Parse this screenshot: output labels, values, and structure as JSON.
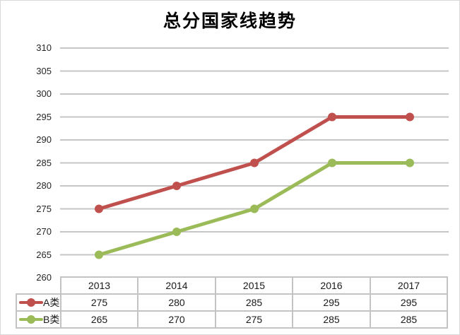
{
  "title": "总分国家线趋势",
  "colors": {
    "series_a": "#c0504d",
    "series_b": "#9bbb59",
    "gridline": "#c6c6c6",
    "table_border": "#c3c3c3",
    "text": "#1a1a1a"
  },
  "y_axis": {
    "labels": [
      "310",
      "305",
      "300",
      "295",
      "290",
      "285",
      "280",
      "275",
      "270",
      "265",
      "260"
    ],
    "min": 260,
    "max": 310,
    "step": 5
  },
  "chart_data": {
    "type": "line",
    "title": "总分国家线趋势",
    "categories": [
      "2013",
      "2014",
      "2015",
      "2016",
      "2017"
    ],
    "series": [
      {
        "name": "A类",
        "values": [
          275,
          280,
          285,
          295,
          295
        ],
        "color": "#c0504d"
      },
      {
        "name": "B类",
        "values": [
          265,
          270,
          275,
          285,
          285
        ],
        "color": "#9bbb59"
      }
    ],
    "xlabel": "",
    "ylabel": "",
    "ylim": [
      260,
      310
    ],
    "y_tick_step": 5,
    "grid": true,
    "legend_position": "data-table-left"
  },
  "table": {
    "header": [
      "2013",
      "2014",
      "2015",
      "2016",
      "2017"
    ],
    "rows": [
      {
        "label": "A类",
        "values": [
          "275",
          "280",
          "285",
          "295",
          "295"
        ]
      },
      {
        "label": "B类",
        "values": [
          "265",
          "270",
          "275",
          "285",
          "285"
        ]
      }
    ]
  }
}
